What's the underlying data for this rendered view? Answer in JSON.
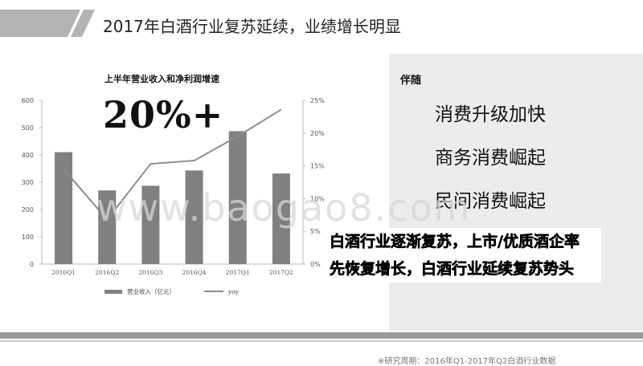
{
  "slide": {
    "title": "2017年白酒行业复苏延续，业绩增长明显",
    "accent_color": "#b3b3b3"
  },
  "chart_data": {
    "type": "bar",
    "title": "上半年营业收入和净利润增速",
    "highlight": "20%+",
    "categories": [
      "2016Q1",
      "2016Q2",
      "2016Q3",
      "2016Q4",
      "2017Q1",
      "2017Q2"
    ],
    "series": [
      {
        "name": "营业收入（亿元）",
        "type": "bar",
        "axis": "left",
        "color": "#808080",
        "values": [
          410,
          270,
          287,
          343,
          487,
          332
        ]
      },
      {
        "name": "yoy",
        "type": "line",
        "axis": "right",
        "color": "#8c8c8c",
        "values": [
          14.5,
          6.8,
          15.3,
          15.8,
          19.5,
          23.6
        ]
      }
    ],
    "y_left": {
      "ticks": [
        "0",
        "100",
        "200",
        "300",
        "400",
        "500",
        "600"
      ],
      "ylim": [
        0,
        600
      ]
    },
    "y_right": {
      "ticks": [
        "0%",
        "5%",
        "10%",
        "15%",
        "20%",
        "25%"
      ],
      "ylim": [
        0,
        25
      ]
    },
    "legend_position": "bottom"
  },
  "panel": {
    "header": "伴随",
    "items": [
      "消费升级加快",
      "商务消费崛起",
      "民间消费崛起"
    ]
  },
  "summary": {
    "line1": "白酒行业逐渐复苏，上市/优质酒企率",
    "line2": "先恢复增长，白酒行业延续复苏势头"
  },
  "watermark": "www.baogao8.com",
  "source": "※研究周期：2016年Q1-2017年Q2白酒行业数据"
}
